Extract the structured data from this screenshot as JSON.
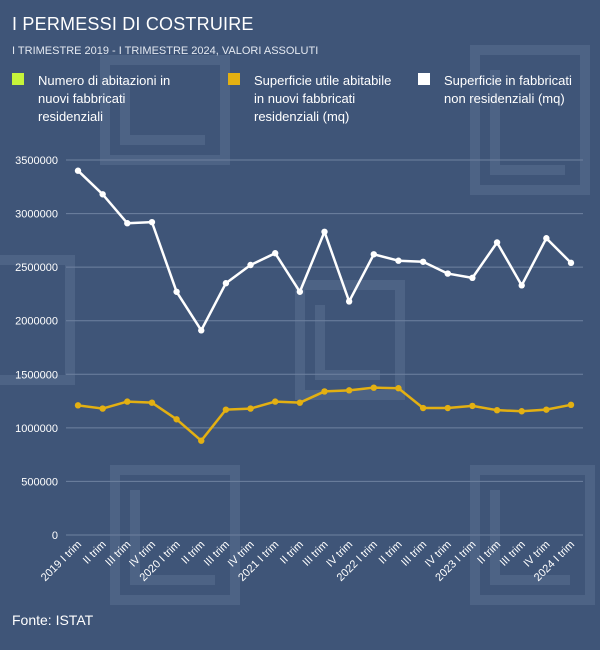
{
  "title": "I PERMESSI DI COSTRUIRE",
  "subtitle": "I TRIMESTRE 2019 - I TRIMESTRE 2024, VALORI ASSOLUTI",
  "source": "Fonte: ISTAT",
  "colors": {
    "background": "#3f5578",
    "grid": "#6f82a0",
    "series_abitazioni": "#c6f43a",
    "series_superficie_abitabile": "#e3b012",
    "series_superficie_non_residenziale": "#ffffff"
  },
  "chart_data": {
    "type": "line",
    "title": "I PERMESSI DI COSTRUIRE",
    "subtitle": "I TRIMESTRE 2019 - I TRIMESTRE 2024, VALORI ASSOLUTI",
    "xlabel": "",
    "ylabel": "",
    "ylim": [
      0,
      3500000
    ],
    "yticks": [
      0,
      500000,
      1000000,
      1500000,
      2000000,
      2500000,
      3000000,
      3500000
    ],
    "ytick_labels": [
      "0",
      "500000",
      "1000000",
      "1500000",
      "2000000",
      "2500000",
      "3000000",
      "3500000"
    ],
    "grid": true,
    "legend_position": "top",
    "categories": [
      "2019 I trim",
      "II trim",
      "III trim",
      "IV trim",
      "2020 I trim",
      "II trim",
      "III trim",
      "IV trim",
      "2021 I trim",
      "II trim",
      "III trim",
      "IV trim",
      "2022 I trim",
      "II trim",
      "III trim",
      "IV trim",
      "2023 I trim",
      "II trim",
      "III trim",
      "IV trim",
      "2024 I trim"
    ],
    "series": [
      {
        "name": "Numero di abitazioni in nuovi fabbricati residenziali",
        "color": "#c6f43a",
        "values": [
          null,
          null,
          null,
          null,
          null,
          null,
          null,
          null,
          null,
          null,
          null,
          null,
          null,
          null,
          null,
          null,
          null,
          null,
          null,
          null,
          null
        ]
      },
      {
        "name": "Superficie utile abitabile in nuovi fabbricati residenziali (mq)",
        "color": "#e3b012",
        "values": [
          1210000,
          1180000,
          1245000,
          1235000,
          1080000,
          880000,
          1170000,
          1180000,
          1245000,
          1235000,
          1340000,
          1350000,
          1375000,
          1370000,
          1185000,
          1185000,
          1205000,
          1165000,
          1155000,
          1170000,
          1215000
        ]
      },
      {
        "name": "Superficie in fabbricati non residenziali (mq)",
        "color": "#ffffff",
        "values": [
          3400000,
          3180000,
          2910000,
          2920000,
          2270000,
          1910000,
          2350000,
          2520000,
          2630000,
          2270000,
          2830000,
          2180000,
          2620000,
          2560000,
          2550000,
          2440000,
          2400000,
          2730000,
          2330000,
          2770000,
          2540000
        ]
      }
    ]
  }
}
